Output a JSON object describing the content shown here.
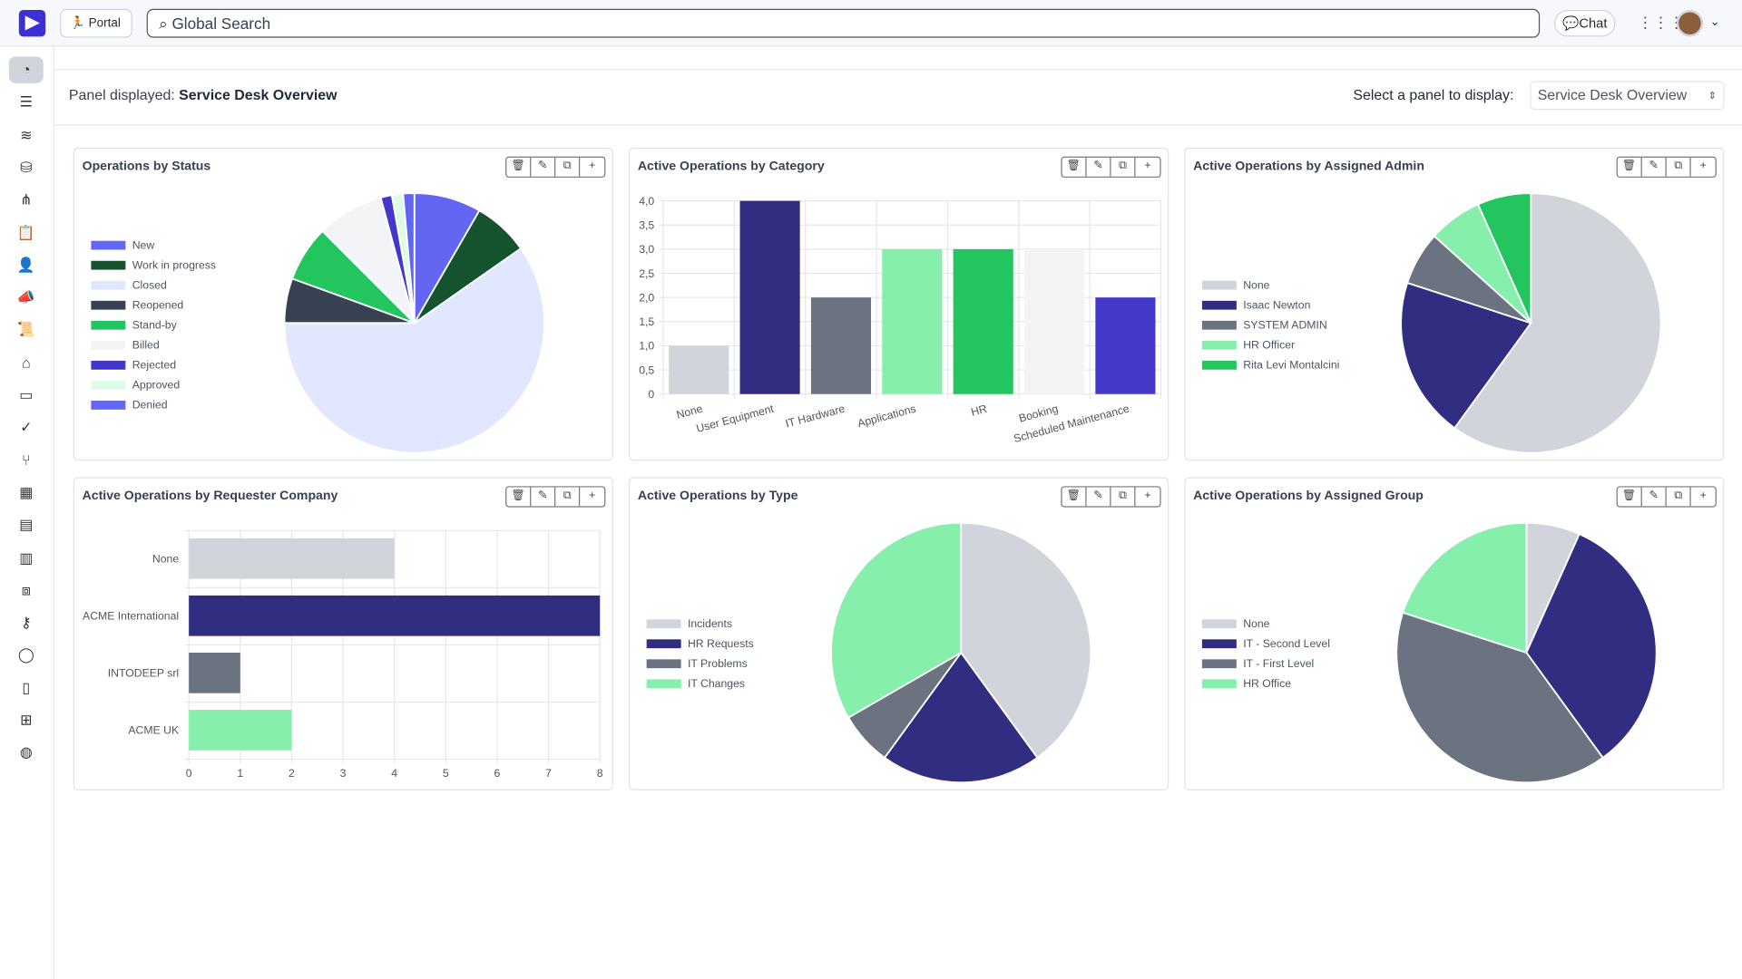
{
  "topbar": {
    "portal_label": "Portal",
    "search_placeholder": "Global Search",
    "chat_label": "Chat"
  },
  "sidebar": {
    "items": [
      "dashboard",
      "list",
      "wifi",
      "database",
      "org-chart",
      "clipboard",
      "user",
      "megaphone",
      "scroll",
      "garage",
      "laptop",
      "check-circle",
      "git-branch",
      "calendar",
      "table",
      "bar-chart",
      "box",
      "key",
      "chat",
      "document",
      "sitemap",
      "globe"
    ]
  },
  "header": {
    "panel_prefix": "Panel displayed:",
    "panel_name": "Service Desk Overview",
    "select_label": "Select a panel to display:",
    "select_value": "Service Desk Overview"
  },
  "colors": {
    "brand": "#3b2fd6"
  },
  "chart_data": [
    {
      "type": "pie",
      "title": "Operations by Status",
      "labels": [
        "New",
        "Work in progress",
        "Closed",
        "Reopened",
        "Stand-by",
        "Billed",
        "Rejected",
        "Approved",
        "Denied"
      ],
      "values": [
        6,
        5,
        43,
        4,
        5,
        6,
        1,
        1,
        1
      ],
      "colors": [
        "#6366f1",
        "#14532d",
        "#e0e7ff",
        "#374151",
        "#22c55e",
        "#f3f4f6",
        "#4338ca",
        "#dcfce7",
        "#6366f1"
      ],
      "legend": "left"
    },
    {
      "type": "bar",
      "title": "Active Operations by Category",
      "categories": [
        "None",
        "User Equipment",
        "IT Hardware",
        "Applications",
        "HR",
        "Booking",
        "Scheduled Maintenance"
      ],
      "values": [
        1,
        4,
        2,
        3,
        3,
        3,
        2
      ],
      "colors": [
        "#d1d5db",
        "#312e81",
        "#6b7280",
        "#86efac",
        "#22c55e",
        "#f3f4f6",
        "#4338ca"
      ],
      "ylim": [
        0,
        4
      ],
      "yticks": [
        "0",
        "0,5",
        "1,0",
        "1,5",
        "2,0",
        "2,5",
        "3,0",
        "3,5",
        "4,0"
      ],
      "grid": true
    },
    {
      "type": "pie",
      "title": "Active Operations by Assigned Admin",
      "labels": [
        "None",
        "Isaac Newton",
        "SYSTEM ADMIN",
        "HR Officer",
        "Rita Levi Montalcini"
      ],
      "values": [
        9,
        3,
        1,
        1,
        1
      ],
      "colors": [
        "#d1d5db",
        "#312e81",
        "#6b7280",
        "#86efac",
        "#22c55e"
      ],
      "legend": "left"
    },
    {
      "type": "hbar",
      "title": "Active Operations by Requester Company",
      "categories": [
        "None",
        "ACME International",
        "INTODEEP srl",
        "ACME UK"
      ],
      "values": [
        4,
        8,
        1,
        2
      ],
      "colors": [
        "#d1d5db",
        "#312e81",
        "#6b7280",
        "#86efac"
      ],
      "xlim": [
        0,
        8
      ],
      "xticks": [
        "0",
        "1",
        "2",
        "3",
        "4",
        "5",
        "6",
        "7",
        "8"
      ],
      "grid": true
    },
    {
      "type": "pie",
      "title": "Active Operations by Type",
      "labels": [
        "Incidents",
        "HR Requests",
        "IT Problems",
        "IT Changes"
      ],
      "values": [
        6,
        3,
        1,
        5
      ],
      "colors": [
        "#d1d5db",
        "#312e81",
        "#6b7280",
        "#86efac"
      ],
      "legend": "left"
    },
    {
      "type": "pie",
      "title": "Active Operations by Assigned Group",
      "labels": [
        "None",
        "IT - Second Level",
        "IT - First Level",
        "HR Office"
      ],
      "values": [
        1,
        5,
        6,
        3
      ],
      "colors": [
        "#d1d5db",
        "#312e81",
        "#6b7280",
        "#86efac"
      ],
      "legend": "left"
    }
  ]
}
